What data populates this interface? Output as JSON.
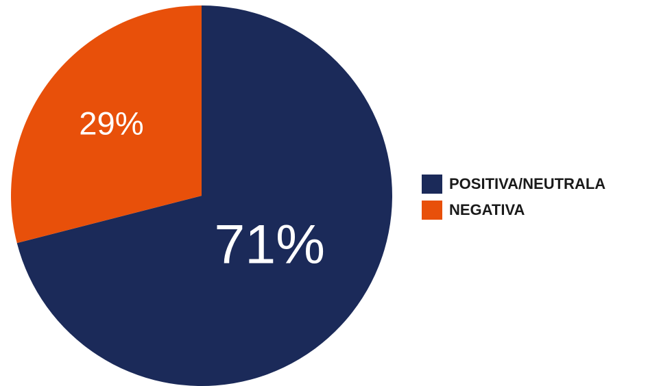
{
  "chart_data": {
    "type": "pie",
    "categories": [
      "POSITIVA/NEUTRALA",
      "NEGATIVA"
    ],
    "values": [
      71,
      29
    ],
    "value_labels": [
      "71%",
      "29%"
    ],
    "colors": [
      "#1b2a59",
      "#e8500a"
    ],
    "legend": "right"
  }
}
